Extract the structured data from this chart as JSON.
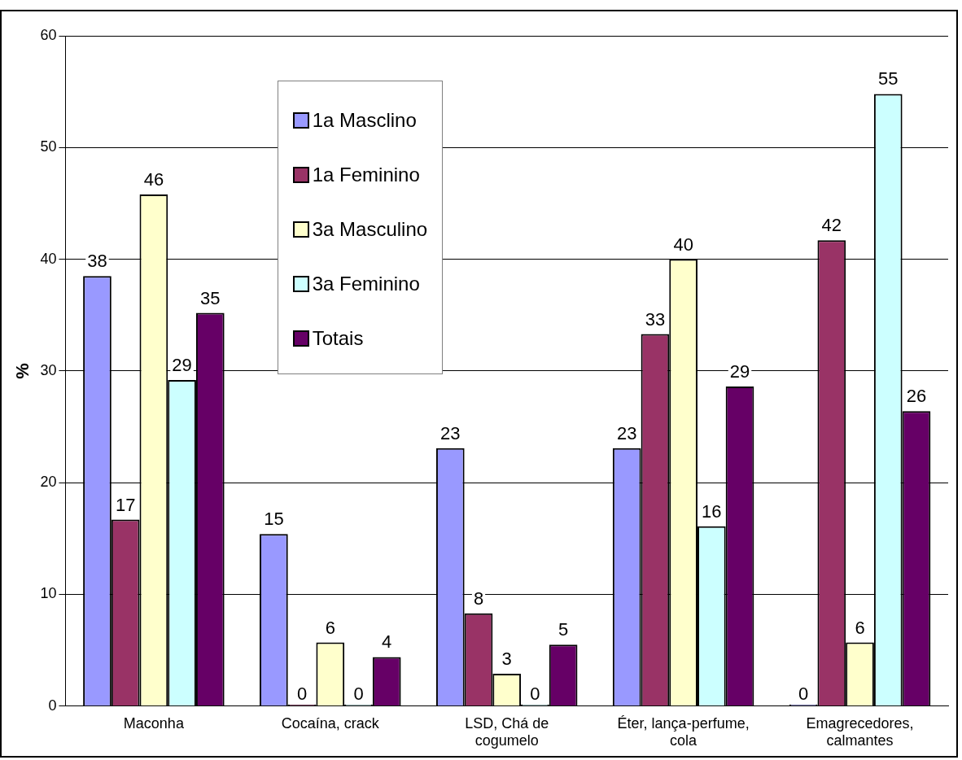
{
  "chart_data": {
    "type": "bar",
    "ylabel": "%",
    "categories": [
      "Maconha",
      "Cocaína, crack",
      "LSD, Chá de cogumelo",
      "Éter, lança-perfume, cola",
      "Emagrecedores, calmantes"
    ],
    "series": [
      {
        "name": "1a Masclino",
        "color": "#9999ff",
        "values": [
          38.5,
          15.4,
          23.1,
          23.1,
          0
        ],
        "value_labels": [
          "38",
          "15",
          "23",
          "23",
          "0"
        ]
      },
      {
        "name": "1a Feminino",
        "color": "#993366",
        "values": [
          16.7,
          0,
          8.3,
          33.3,
          41.7
        ],
        "value_labels": [
          "17",
          "0",
          "8",
          "33",
          "42"
        ]
      },
      {
        "name": "3a Masculino",
        "color": "#ffffcc",
        "values": [
          45.8,
          5.7,
          2.9,
          40,
          5.7
        ],
        "value_labels": [
          "46",
          "6",
          "3",
          "40",
          "6"
        ]
      },
      {
        "name": "3a Feminino",
        "color": "#ccffff",
        "values": [
          29.2,
          0,
          0,
          16.1,
          54.8
        ],
        "value_labels": [
          "29",
          "0",
          "0",
          "16",
          "55"
        ]
      },
      {
        "name": "Totais",
        "color": "#660066",
        "values": [
          35.2,
          4.4,
          5.5,
          28.6,
          26.4
        ],
        "value_labels": [
          "35",
          "4",
          "5",
          "29",
          "26"
        ]
      }
    ],
    "ylim": [
      0,
      60
    ],
    "yticks": [
      0,
      10,
      20,
      30,
      40,
      50,
      60
    ],
    "grid": "y",
    "legend": "top"
  }
}
